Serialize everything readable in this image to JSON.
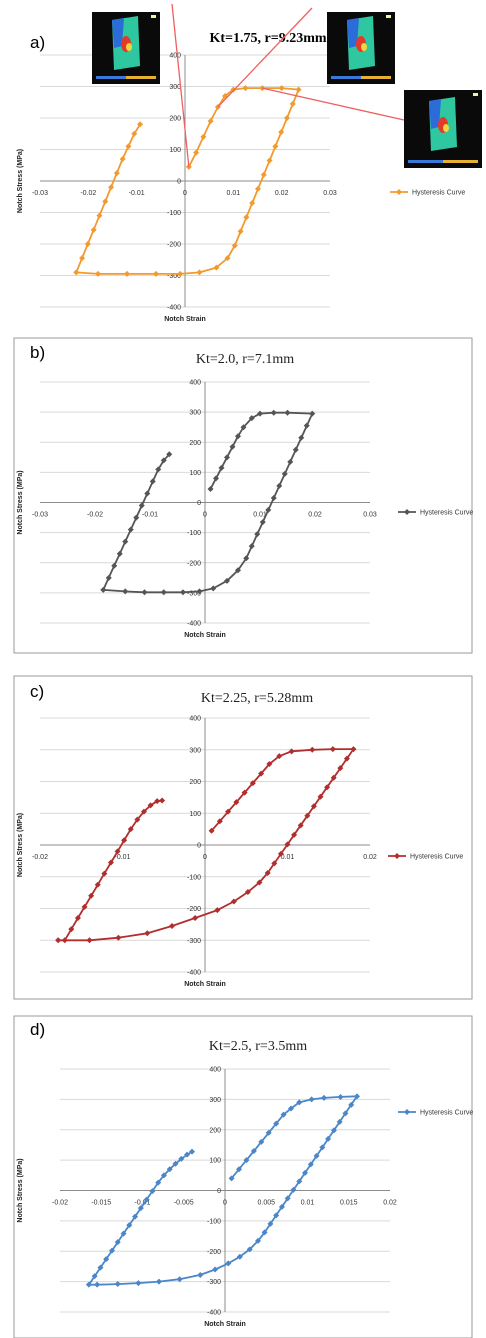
{
  "chart_data": [
    {
      "type": "line",
      "panel_label": "a)",
      "title": "Kt=1.75, r=9.23mm",
      "title_bold": true,
      "xlabel": "Notch Strain",
      "ylabel": "Notch Stress (MPa)",
      "xlim": [
        -0.03,
        0.03
      ],
      "ylim": [
        -400,
        400
      ],
      "xticks": [
        "-0.03",
        "-0.02",
        "-0.01",
        "0",
        "0.01",
        "0.02",
        "0.03"
      ],
      "xtick_values": [
        -0.03,
        -0.02,
        -0.01,
        0,
        0.01,
        0.02,
        0.03
      ],
      "yticks": [
        "-400",
        "-300",
        "-200",
        "-100",
        "0",
        "100",
        "200",
        "300",
        "400"
      ],
      "ytick_values": [
        -400,
        -300,
        -200,
        -100,
        0,
        100,
        200,
        300,
        400
      ],
      "grid": true,
      "legend": "right",
      "color": "#F39A2F",
      "series": [
        {
          "name": "Hysteresis Curve",
          "x": [
            0.0008,
            0.0023,
            0.0038,
            0.0053,
            0.0068,
            0.0083,
            0.01,
            0.0125,
            0.016,
            0.02,
            0.0235,
            0.0223,
            0.0211,
            0.0199,
            0.0187,
            0.0175,
            0.0163,
            0.0151,
            0.0139,
            0.0127,
            0.0115,
            0.0103,
            0.0088,
            0.0065,
            0.003,
            -0.001,
            -0.006,
            -0.012,
            -0.018,
            -0.0225,
            -0.0213,
            -0.0201,
            -0.0189,
            -0.0177,
            -0.0165,
            -0.0153,
            -0.0141,
            -0.0129,
            -0.0117,
            -0.0105,
            -0.0093
          ],
          "y": [
            45,
            90,
            140,
            190,
            235,
            270,
            290,
            295,
            295,
            295,
            290,
            245,
            200,
            155,
            110,
            65,
            20,
            -25,
            -70,
            -115,
            -160,
            -205,
            -245,
            -275,
            -290,
            -295,
            -295,
            -295,
            -295,
            -290,
            -245,
            -200,
            -155,
            -110,
            -65,
            -20,
            25,
            70,
            110,
            150,
            180
          ]
        }
      ],
      "inset_labels": [
        "",
        "",
        ""
      ]
    },
    {
      "type": "line",
      "panel_label": "b)",
      "title": "Kt=2.0, r=7.1mm",
      "title_bold": false,
      "xlabel": "Notch Strain",
      "ylabel": "Notch Stress (MPa)",
      "xlim": [
        -0.03,
        0.03
      ],
      "ylim": [
        -400,
        400
      ],
      "xticks": [
        "-0.03",
        "-0.02",
        "-0.01",
        "0",
        "0.01",
        "0.02",
        "0.03"
      ],
      "xtick_values": [
        -0.03,
        -0.02,
        -0.01,
        0,
        0.01,
        0.02,
        0.03
      ],
      "yticks": [
        "-400",
        "-300",
        "-200",
        "-100",
        "0",
        "100",
        "200",
        "300",
        "400"
      ],
      "ytick_values": [
        -400,
        -300,
        -200,
        -100,
        0,
        100,
        200,
        300,
        400
      ],
      "grid": true,
      "legend": "right",
      "color": "#555555",
      "series": [
        {
          "name": "Hysteresis Curve",
          "x": [
            0.001,
            0.002,
            0.003,
            0.004,
            0.005,
            0.006,
            0.007,
            0.0085,
            0.01,
            0.0125,
            0.015,
            0.0195,
            0.0185,
            0.0175,
            0.0165,
            0.0155,
            0.0145,
            0.0135,
            0.0125,
            0.0115,
            0.0105,
            0.0095,
            0.0085,
            0.0075,
            0.006,
            0.004,
            0.0015,
            -0.001,
            -0.004,
            -0.0075,
            -0.011,
            -0.0145,
            -0.0185,
            -0.0175,
            -0.0165,
            -0.0155,
            -0.0145,
            -0.0135,
            -0.0125,
            -0.0115,
            -0.0105,
            -0.0095,
            -0.0085,
            -0.0075,
            -0.0065
          ],
          "y": [
            45,
            80,
            115,
            150,
            185,
            220,
            250,
            280,
            295,
            298,
            298,
            295,
            255,
            215,
            175,
            135,
            95,
            55,
            15,
            -25,
            -65,
            -105,
            -145,
            -185,
            -225,
            -260,
            -285,
            -295,
            -298,
            -298,
            -298,
            -295,
            -290,
            -250,
            -210,
            -170,
            -130,
            -90,
            -50,
            -10,
            30,
            70,
            110,
            140,
            160
          ]
        }
      ]
    },
    {
      "type": "line",
      "panel_label": "c)",
      "title": "Kt=2.25, r=5.28mm",
      "title_bold": false,
      "xlabel": "Notch Strain",
      "ylabel": "Notch Stress (MPa)",
      "xlim": [
        -0.02,
        0.02
      ],
      "ylim": [
        -400,
        400
      ],
      "xticks": [
        "-0.02",
        "-0.01",
        "0",
        "0.01",
        "0.02"
      ],
      "xtick_values": [
        -0.02,
        -0.01,
        0,
        0.01,
        0.02
      ],
      "yticks": [
        "-400",
        "-300",
        "-200",
        "-100",
        "0",
        "100",
        "200",
        "300",
        "400"
      ],
      "ytick_values": [
        -400,
        -300,
        -200,
        -100,
        0,
        100,
        200,
        300,
        400
      ],
      "grid": true,
      "legend": "right",
      "color": "#B22E2E",
      "series": [
        {
          "name": "Hysteresis Curve",
          "x": [
            0.0008,
            0.0018,
            0.0028,
            0.0038,
            0.0048,
            0.0058,
            0.0068,
            0.0078,
            0.009,
            0.0105,
            0.013,
            0.0155,
            0.018,
            0.0172,
            0.0164,
            0.0156,
            0.0148,
            0.014,
            0.0132,
            0.0124,
            0.0116,
            0.0108,
            0.01,
            0.0092,
            0.0084,
            0.0076,
            0.0066,
            0.0052,
            0.0035,
            0.0015,
            -0.0012,
            -0.004,
            -0.007,
            -0.0105,
            -0.014,
            -0.0178,
            -0.017,
            -0.0162,
            -0.0154,
            -0.0146,
            -0.0138,
            -0.013,
            -0.0122,
            -0.0114,
            -0.0106,
            -0.0098,
            -0.009,
            -0.0082,
            -0.0074,
            -0.0066,
            -0.0058,
            -0.0052
          ],
          "y": [
            45,
            75,
            105,
            135,
            165,
            195,
            225,
            255,
            280,
            295,
            300,
            302,
            302,
            272,
            242,
            212,
            182,
            152,
            122,
            92,
            62,
            32,
            2,
            -28,
            -58,
            -88,
            -118,
            -148,
            -178,
            -205,
            -230,
            -255,
            -278,
            -292,
            -300,
            -300,
            -300,
            -265,
            -230,
            -195,
            -160,
            -125,
            -90,
            -55,
            -20,
            15,
            50,
            80,
            105,
            125,
            138,
            140
          ]
        }
      ]
    },
    {
      "type": "line",
      "panel_label": "d)",
      "title": "Kt=2.5, r=3.5mm",
      "title_bold": false,
      "xlabel": "Notch Strain",
      "ylabel": "Notch Stress (MPa)",
      "xlim": [
        -0.02,
        0.02
      ],
      "ylim": [
        -400,
        400
      ],
      "xticks": [
        "-0.02",
        "-0.015",
        "-0.01",
        "-0.005",
        "0",
        "0.005",
        "0.01",
        "0.015",
        "0.02"
      ],
      "xtick_values": [
        -0.02,
        -0.015,
        -0.01,
        -0.005,
        0,
        0.005,
        0.01,
        0.015,
        0.02
      ],
      "yticks": [
        "-400",
        "-300",
        "-200",
        "-100",
        "0",
        "100",
        "200",
        "300",
        "400"
      ],
      "ytick_values": [
        -400,
        -300,
        -200,
        -100,
        0,
        100,
        200,
        300,
        400
      ],
      "grid": true,
      "legend": "right",
      "color": "#4A86C8",
      "series": [
        {
          "name": "Hysteresis Curve",
          "x": [
            0.0008,
            0.0017,
            0.0026,
            0.0035,
            0.0044,
            0.0053,
            0.0062,
            0.0071,
            0.008,
            0.009,
            0.0105,
            0.012,
            0.014,
            0.016,
            0.0153,
            0.0146,
            0.0139,
            0.0132,
            0.0125,
            0.0118,
            0.0111,
            0.0104,
            0.0097,
            0.009,
            0.0083,
            0.0076,
            0.0069,
            0.0062,
            0.0055,
            0.0048,
            0.004,
            0.003,
            0.0018,
            0.0004,
            -0.0012,
            -0.003,
            -0.0055,
            -0.008,
            -0.0105,
            -0.013,
            -0.0155,
            -0.0165,
            -0.0158,
            -0.0151,
            -0.0144,
            -0.0137,
            -0.013,
            -0.0123,
            -0.0116,
            -0.0109,
            -0.0102,
            -0.0095,
            -0.0088,
            -0.0081,
            -0.0074,
            -0.0067,
            -0.006,
            -0.0053,
            -0.0046,
            -0.004
          ],
          "y": [
            40,
            70,
            100,
            130,
            160,
            190,
            220,
            250,
            270,
            290,
            300,
            305,
            308,
            310,
            282,
            254,
            226,
            198,
            170,
            142,
            114,
            86,
            58,
            30,
            2,
            -26,
            -54,
            -82,
            -110,
            -138,
            -166,
            -194,
            -218,
            -240,
            -260,
            -278,
            -292,
            -300,
            -305,
            -308,
            -310,
            -310,
            -282,
            -254,
            -226,
            -198,
            -170,
            -142,
            -114,
            -86,
            -58,
            -30,
            -2,
            26,
            50,
            70,
            88,
            104,
            118,
            128
          ]
        }
      ]
    }
  ]
}
